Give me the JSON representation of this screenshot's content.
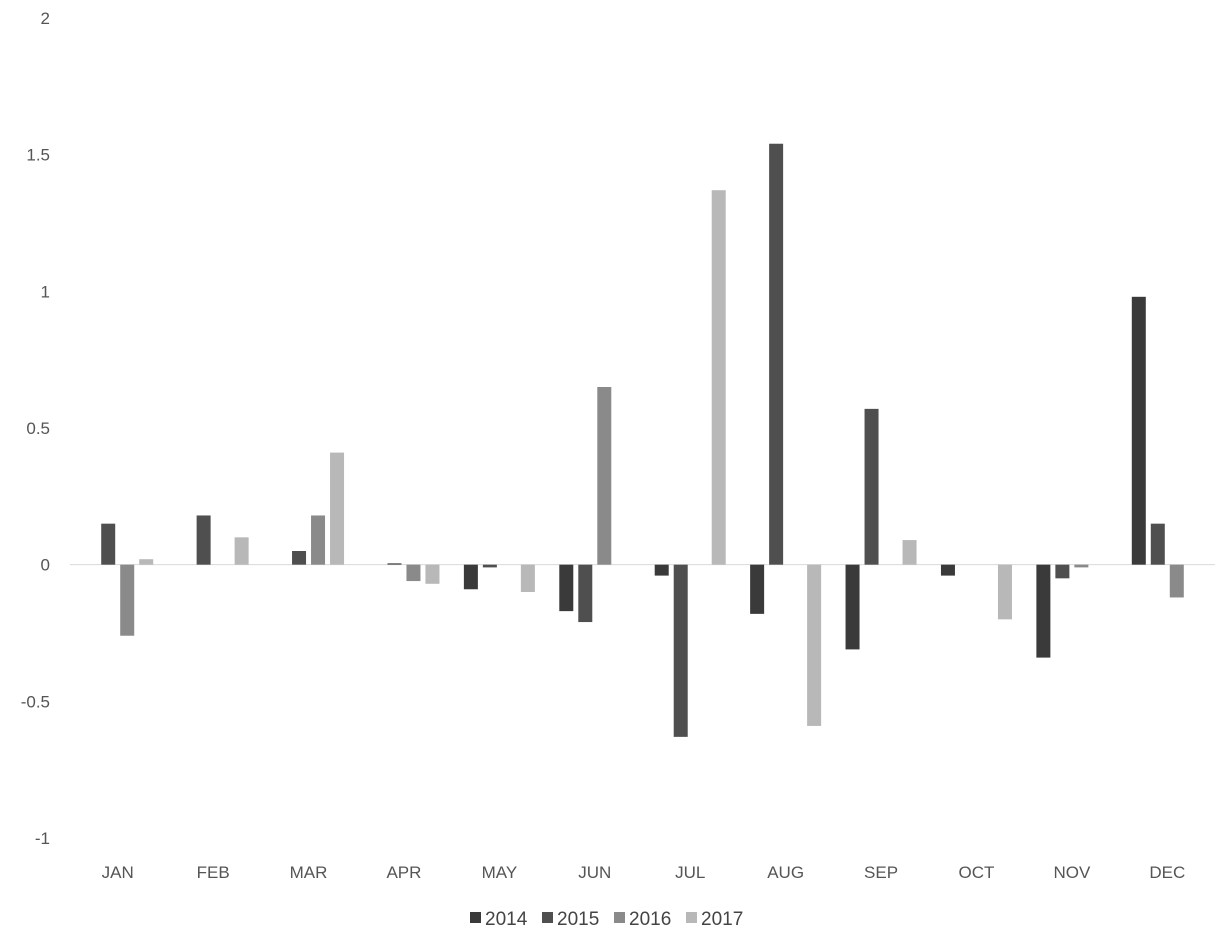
{
  "chart_data": {
    "type": "bar",
    "title": "",
    "xlabel": "",
    "ylabel": "",
    "categories": [
      "JAN",
      "FEB",
      "MAR",
      "APR",
      "MAY",
      "JUN",
      "JUL",
      "AUG",
      "SEP",
      "OCT",
      "NOV",
      "DEC"
    ],
    "ylim": [
      -1,
      2
    ],
    "yticks": [
      2,
      1.5,
      1,
      0.5,
      0,
      -0.5,
      -1
    ],
    "ytick_labels": [
      "2",
      "1.5",
      "1",
      "0.5",
      "0",
      "-0.5",
      "-1"
    ],
    "grid": false,
    "legend_position": "bottom",
    "series": [
      {
        "name": "2014",
        "color": "#3a3a3a",
        "values": [
          0,
          0,
          0,
          0,
          -0.09,
          -0.17,
          -0.04,
          -0.18,
          -0.31,
          -0.04,
          -0.34,
          0.98
        ]
      },
      {
        "name": "2015",
        "color": "#4f4f4f",
        "values": [
          0.15,
          0.18,
          0.05,
          0.005,
          -0.01,
          -0.21,
          -0.63,
          1.54,
          0.57,
          0,
          -0.05,
          0.15
        ]
      },
      {
        "name": "2016",
        "color": "#8a8a8a",
        "values": [
          -0.26,
          0,
          0.18,
          -0.06,
          0,
          0.65,
          0,
          0,
          0,
          0,
          -0.01,
          -0.12
        ]
      },
      {
        "name": "2017",
        "color": "#b8b8b8",
        "values": [
          0.02,
          0.1,
          0.41,
          -0.07,
          -0.1,
          0,
          1.37,
          -0.59,
          0.09,
          -0.2,
          0,
          0
        ]
      }
    ]
  }
}
